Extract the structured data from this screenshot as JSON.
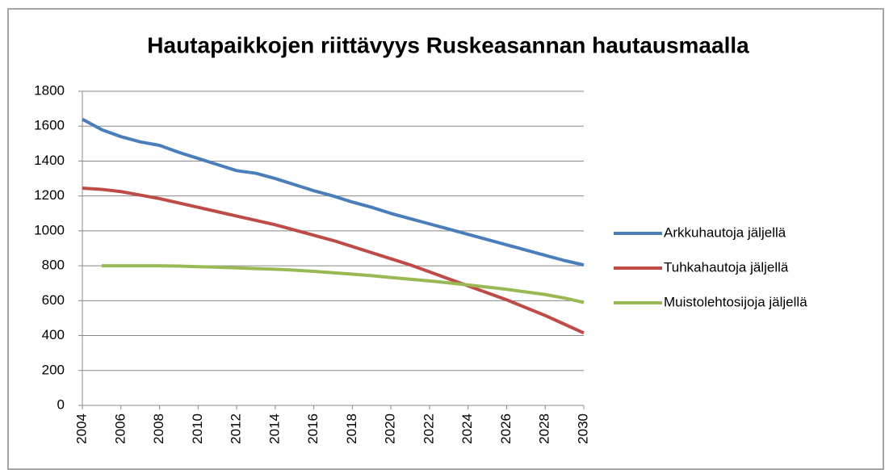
{
  "chart_data": {
    "type": "line",
    "title": "Hautapaikkojen riittävyys Ruskeasannan hautausmaalla",
    "x": [
      2004,
      2005,
      2006,
      2007,
      2008,
      2009,
      2010,
      2011,
      2012,
      2013,
      2014,
      2015,
      2016,
      2017,
      2018,
      2019,
      2020,
      2021,
      2022,
      2023,
      2024,
      2025,
      2026,
      2027,
      2028,
      2029,
      2030
    ],
    "series": [
      {
        "name": "Arkkuhautoja jäljellä",
        "color": "#4a7ebb",
        "values": [
          1640,
          1580,
          1540,
          1510,
          1490,
          1450,
          1415,
          1380,
          1345,
          1330,
          1300,
          1265,
          1230,
          1200,
          1165,
          1135,
          1100,
          1070,
          1040,
          1010,
          980,
          950,
          920,
          890,
          860,
          830,
          805
        ]
      },
      {
        "name": "Tuhkahautoja jäljellä",
        "color": "#be4b48",
        "values": [
          1245,
          1238,
          1225,
          1205,
          1185,
          1160,
          1135,
          1110,
          1085,
          1060,
          1035,
          1005,
          975,
          945,
          910,
          875,
          840,
          805,
          765,
          725,
          685,
          645,
          605,
          560,
          515,
          465,
          415
        ]
      },
      {
        "name": "Muistolehtosijoja jäljellä",
        "color": "#98b954",
        "values": [
          null,
          800,
          800,
          800,
          800,
          798,
          795,
          792,
          788,
          784,
          780,
          775,
          768,
          760,
          752,
          743,
          733,
          723,
          713,
          702,
          690,
          678,
          665,
          650,
          635,
          615,
          590
        ]
      }
    ],
    "xlim": [
      2004,
      2030
    ],
    "xticks": [
      2004,
      2006,
      2008,
      2010,
      2012,
      2014,
      2016,
      2018,
      2020,
      2022,
      2024,
      2026,
      2028,
      2030
    ],
    "ylim": [
      0,
      1800
    ],
    "yticks": [
      0,
      200,
      400,
      600,
      800,
      1000,
      1200,
      1400,
      1600,
      1800
    ],
    "grid": true,
    "legend": "right"
  }
}
